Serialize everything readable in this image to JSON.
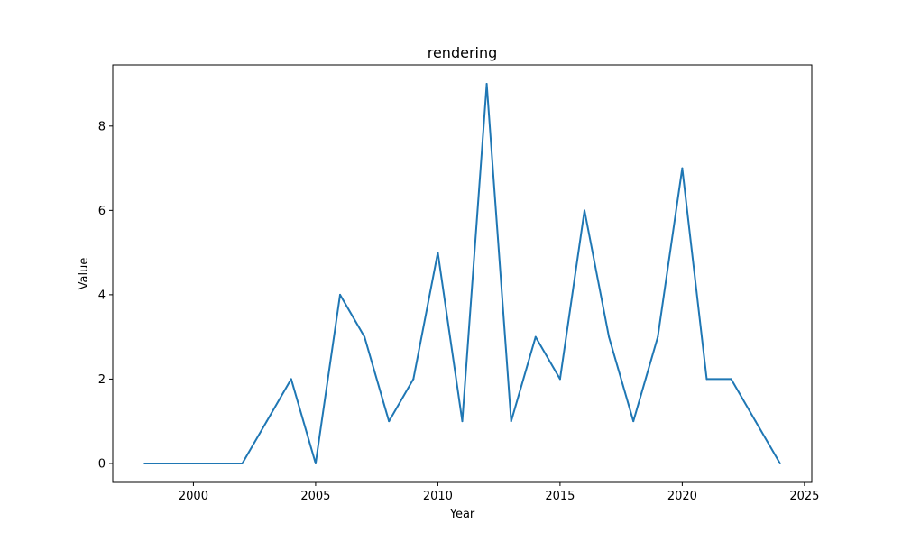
{
  "chart_data": {
    "type": "line",
    "title": "rendering",
    "xlabel": "Year",
    "ylabel": "Value",
    "x": [
      1998,
      1999,
      2000,
      2001,
      2002,
      2003,
      2004,
      2005,
      2006,
      2007,
      2008,
      2009,
      2010,
      2011,
      2012,
      2013,
      2014,
      2015,
      2016,
      2017,
      2018,
      2019,
      2020,
      2021,
      2022,
      2023,
      2024
    ],
    "series": [
      {
        "values": [
          0,
          0,
          0,
          0,
          0,
          1,
          2,
          0,
          4,
          3,
          1,
          2,
          5,
          1,
          9,
          1,
          3,
          2,
          6,
          3,
          1,
          3,
          7,
          2,
          2,
          1,
          0
        ],
        "color": "#1f77b4"
      }
    ],
    "xlim": [
      1996.7,
      2025.3
    ],
    "ylim": [
      -0.45,
      9.45
    ],
    "xticks": [
      2000,
      2005,
      2010,
      2015,
      2020,
      2025
    ],
    "yticks": [
      0,
      2,
      4,
      6,
      8
    ],
    "grid": false
  }
}
